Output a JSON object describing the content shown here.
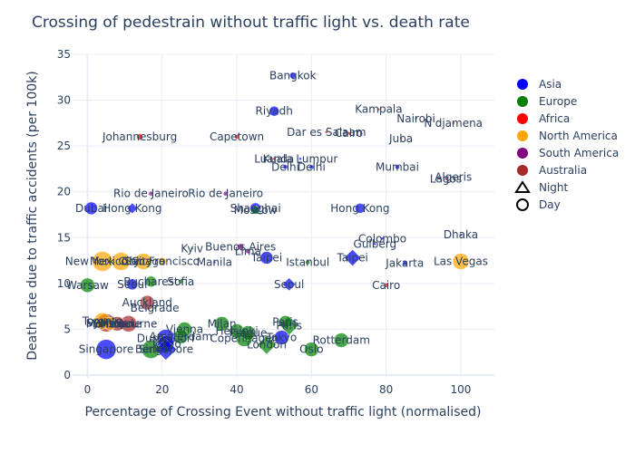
{
  "chart_data": {
    "type": "scatter",
    "title": "Crossing of pedestrain without traffic light vs. death rate",
    "xlabel": "Percentage of Crossing Event without traffic light (normalised)",
    "ylabel": "Death rate due to traffic accidents (per 100k)",
    "xlim": [
      -4,
      109
    ],
    "ylim": [
      -0.3,
      35
    ],
    "xticks": [
      0,
      20,
      40,
      60,
      80,
      100
    ],
    "yticks": [
      0,
      5,
      10,
      15,
      20,
      25,
      30,
      35
    ],
    "grid": true,
    "legend_position": "right",
    "colors": {
      "Asia": "#0000ff",
      "Europe": "#008000",
      "Africa": "#ff0000",
      "North America": "#ffa500",
      "South America": "#800080",
      "Australia": "#a52a2a"
    },
    "legend": {
      "regions": [
        "Asia",
        "Europe",
        "Africa",
        "North America",
        "South America",
        "Australia"
      ],
      "times": [
        "Night",
        "Day"
      ]
    },
    "points": [
      {
        "label": "Bangkok",
        "x": 55,
        "y": 32.7,
        "region": "Asia",
        "time": "Day",
        "size": 7
      },
      {
        "label": "Riyadh",
        "x": 50,
        "y": 28.8,
        "region": "Asia",
        "time": "Day",
        "size": 11
      },
      {
        "label": "Kampala",
        "x": 78,
        "y": 29.0,
        "region": "Africa",
        "time": "Day",
        "size": 3
      },
      {
        "label": "Nairobi",
        "x": 88,
        "y": 28.0,
        "region": "Africa",
        "time": "Day",
        "size": 3
      },
      {
        "label": "N'djamena",
        "x": 98,
        "y": 27.5,
        "region": "Africa",
        "time": "Day",
        "size": 3
      },
      {
        "label": "Dar es Salaam",
        "x": 64,
        "y": 26.5,
        "region": "Africa",
        "time": "Day",
        "size": 3
      },
      {
        "label": "Cairo",
        "x": 70,
        "y": 26.4,
        "region": "Africa",
        "time": "Day",
        "size": 3
      },
      {
        "label": "Juba",
        "x": 84,
        "y": 25.8,
        "region": "Africa",
        "time": "Day",
        "size": 3
      },
      {
        "label": "Johannesburg",
        "x": 14,
        "y": 26.0,
        "region": "Africa",
        "time": "Day",
        "size": 7
      },
      {
        "label": "Capetown",
        "x": 40,
        "y": 26.0,
        "region": "Africa",
        "time": "Day",
        "size": 5
      },
      {
        "label": "Luanda",
        "x": 50,
        "y": 23.6,
        "region": "Africa",
        "time": "Day",
        "size": 3
      },
      {
        "label": "Kuala Lumpur",
        "x": 57,
        "y": 23.6,
        "region": "Asia",
        "time": "Day",
        "size": 3
      },
      {
        "label": "Delhi",
        "x": 53,
        "y": 22.7,
        "region": "Asia",
        "time": "Day",
        "size": 5
      },
      {
        "label": "Delhi",
        "x": 60,
        "y": 22.7,
        "region": "Asia",
        "time": "Day",
        "size": 5
      },
      {
        "label": "Mumbai",
        "x": 83,
        "y": 22.7,
        "region": "Asia",
        "time": "Day",
        "size": 5
      },
      {
        "label": "Algeris",
        "x": 98,
        "y": 21.6,
        "region": "Africa",
        "time": "Day",
        "size": 3
      },
      {
        "label": "Lagos",
        "x": 96,
        "y": 21.4,
        "region": "Africa",
        "time": "Day",
        "size": 3
      },
      {
        "label": "Rio de Janeiro",
        "x": 17,
        "y": 19.8,
        "region": "South America",
        "time": "Day",
        "size": 5
      },
      {
        "label": "Rio de Janeiro",
        "x": 37,
        "y": 19.8,
        "region": "South America",
        "time": "Day",
        "size": 5
      },
      {
        "label": "Dubai",
        "x": 1,
        "y": 18.2,
        "region": "Asia",
        "time": "Day",
        "size": 14
      },
      {
        "label": "Hong Kong",
        "x": 12,
        "y": 18.2,
        "region": "Asia",
        "time": "Night",
        "size": 9
      },
      {
        "label": "Shanghai",
        "x": 45,
        "y": 18.2,
        "region": "Asia",
        "time": "Day",
        "size": 12
      },
      {
        "label": "Moscow",
        "x": 45,
        "y": 18.0,
        "region": "Europe",
        "time": "Day",
        "size": 9
      },
      {
        "label": "Hong Kong",
        "x": 73,
        "y": 18.2,
        "region": "Asia",
        "time": "Day",
        "size": 11
      },
      {
        "label": "Dhaka",
        "x": 100,
        "y": 15.3,
        "region": "Asia",
        "time": "Day",
        "size": 3
      },
      {
        "label": "Colombo",
        "x": 79,
        "y": 14.9,
        "region": "Asia",
        "time": "Day",
        "size": 3
      },
      {
        "label": "Gulberg",
        "x": 77,
        "y": 14.3,
        "region": "Asia",
        "time": "Day",
        "size": 3
      },
      {
        "label": "Buenos Aires",
        "x": 41,
        "y": 14.0,
        "region": "South America",
        "time": "Day",
        "size": 7
      },
      {
        "label": "Kyiv",
        "x": 28,
        "y": 13.8,
        "region": "Europe",
        "time": "Day",
        "size": 3
      },
      {
        "label": "Lima",
        "x": 43,
        "y": 13.5,
        "region": "South America",
        "time": "Day",
        "size": 5
      },
      {
        "label": "Taipei",
        "x": 48,
        "y": 12.8,
        "region": "Asia",
        "time": "Day",
        "size": 14
      },
      {
        "label": "Taipei",
        "x": 71,
        "y": 12.8,
        "region": "Asia",
        "time": "Night",
        "size": 14
      },
      {
        "label": "Las Vegas",
        "x": 100,
        "y": 12.4,
        "region": "North America",
        "time": "Day",
        "size": 18
      },
      {
        "label": "Manila",
        "x": 34,
        "y": 12.3,
        "region": "Asia",
        "time": "Day",
        "size": 3
      },
      {
        "label": "Istanbul",
        "x": 59,
        "y": 12.3,
        "region": "Europe",
        "time": "Day",
        "size": 5
      },
      {
        "label": "Jakarta",
        "x": 85,
        "y": 12.2,
        "region": "Asia",
        "time": "Day",
        "size": 5
      },
      {
        "label": "New York City",
        "x": 4,
        "y": 12.4,
        "region": "North America",
        "time": "Day",
        "size": 22
      },
      {
        "label": "Mexico City",
        "x": 9,
        "y": 12.4,
        "region": "North America",
        "time": "Day",
        "size": 20
      },
      {
        "label": "Chicago",
        "x": 15,
        "y": 12.4,
        "region": "North America",
        "time": "Day",
        "size": 18
      },
      {
        "label": "San Francisco",
        "x": 20,
        "y": 12.4,
        "region": "North America",
        "time": "Day",
        "size": 9
      },
      {
        "label": "Sofia",
        "x": 25,
        "y": 10.2,
        "region": "Europe",
        "time": "Day",
        "size": 5
      },
      {
        "label": "Bucharest",
        "x": 17,
        "y": 10.2,
        "region": "Europe",
        "time": "Day",
        "size": 12
      },
      {
        "label": "Seoul",
        "x": 54,
        "y": 9.9,
        "region": "Asia",
        "time": "Night",
        "size": 11
      },
      {
        "label": "Seoul",
        "x": 12,
        "y": 9.9,
        "region": "Asia",
        "time": "Day",
        "size": 12
      },
      {
        "label": "Warsaw",
        "x": 0,
        "y": 9.8,
        "region": "Europe",
        "time": "Day",
        "size": 16
      },
      {
        "label": "Cairo",
        "x": 80,
        "y": 9.8,
        "region": "Africa",
        "time": "Day",
        "size": 5
      },
      {
        "label": "Auckland",
        "x": 16,
        "y": 7.9,
        "region": "Australia",
        "time": "Day",
        "size": 16
      },
      {
        "label": "Belgrade",
        "x": 18,
        "y": 7.3,
        "region": "Europe",
        "time": "Day",
        "size": 3
      },
      {
        "label": "Toronto",
        "x": 4,
        "y": 5.9,
        "region": "North America",
        "time": "Day",
        "size": 18
      },
      {
        "label": "Sydney",
        "x": 5,
        "y": 5.7,
        "region": "Australia",
        "time": "Day",
        "size": 20
      },
      {
        "label": "Montreal",
        "x": 6,
        "y": 5.6,
        "region": "North America",
        "time": "Day",
        "size": 14
      },
      {
        "label": "Brisbane",
        "x": 8,
        "y": 5.6,
        "region": "Australia",
        "time": "Day",
        "size": 16
      },
      {
        "label": "Melbourne",
        "x": 11,
        "y": 5.6,
        "region": "Australia",
        "time": "Day",
        "size": 18
      },
      {
        "label": "Milan",
        "x": 36,
        "y": 5.6,
        "region": "Europe",
        "time": "Day",
        "size": 16
      },
      {
        "label": "Paris",
        "x": 53,
        "y": 5.8,
        "region": "Europe",
        "time": "Day",
        "size": 14
      },
      {
        "label": "Paris",
        "x": 54,
        "y": 5.4,
        "region": "Europe",
        "time": "Night",
        "size": 16
      },
      {
        "label": "Vienna",
        "x": 26,
        "y": 5.0,
        "region": "Europe",
        "time": "Day",
        "size": 16
      },
      {
        "label": "Helsinki",
        "x": 40,
        "y": 4.8,
        "region": "Europe",
        "time": "Day",
        "size": 16
      },
      {
        "label": "Prague",
        "x": 43,
        "y": 4.6,
        "region": "Europe",
        "time": "Day",
        "size": 16
      },
      {
        "label": "Oslo",
        "x": 60,
        "y": 2.8,
        "region": "Europe",
        "time": "Day",
        "size": 16
      },
      {
        "label": "Rotterdam",
        "x": 68,
        "y": 3.8,
        "region": "Europe",
        "time": "Day",
        "size": 16
      },
      {
        "label": "Tokyo",
        "x": 52,
        "y": 4.1,
        "region": "Asia",
        "time": "Day",
        "size": 16
      },
      {
        "label": "Copenhagen",
        "x": 42,
        "y": 4.0,
        "region": "Europe",
        "time": "Day",
        "size": 18
      },
      {
        "label": "Amsterdam",
        "x": 25,
        "y": 4.2,
        "region": "Europe",
        "time": "Day",
        "size": 16
      },
      {
        "label": "London",
        "x": 48,
        "y": 3.3,
        "region": "Europe",
        "time": "Night",
        "size": 16
      },
      {
        "label": "Dusseldorf",
        "x": 21,
        "y": 4.0,
        "region": "Asia",
        "time": "Day",
        "size": 20
      },
      {
        "label": "Tokyo",
        "x": 21,
        "y": 3.4,
        "region": "Asia",
        "time": "Day",
        "size": 18
      },
      {
        "label": "Singapore",
        "x": 5,
        "y": 2.8,
        "region": "Asia",
        "time": "Day",
        "size": 22
      },
      {
        "label": "Berlin",
        "x": 17,
        "y": 2.8,
        "region": "Europe",
        "time": "Day",
        "size": 20
      },
      {
        "label": "Singapore",
        "x": 21,
        "y": 2.8,
        "region": "Asia",
        "time": "Night",
        "size": 18
      }
    ]
  }
}
